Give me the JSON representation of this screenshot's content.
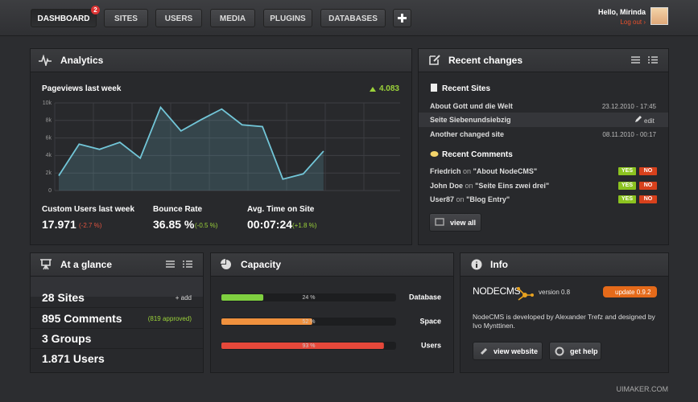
{
  "nav": {
    "items": [
      "DASHBOARD",
      "SITES",
      "USERS",
      "MEDIA",
      "PLUGINS",
      "DATABASES"
    ],
    "badge": "2"
  },
  "user": {
    "greeting": "Hello, Mirinda",
    "logout": "Log out ›"
  },
  "analytics": {
    "title": "Analytics",
    "chart": {
      "type": "line",
      "title": "Pageviews last week",
      "total": "4.083",
      "values": [
        1700,
        5300,
        4700,
        5500,
        3700,
        9500,
        6800,
        8100,
        9300,
        7500,
        7300,
        1300,
        1900,
        4500
      ],
      "ylim": [
        0,
        10000
      ],
      "yticks": [
        0,
        {
          "value": 2000,
          "label": "2k"
        },
        {
          "value": 4000,
          "label": "4k"
        },
        {
          "value": 6000,
          "label": "6k"
        },
        {
          "value": 8000,
          "label": "8k"
        },
        {
          "value": 10000,
          "label": "10k"
        }
      ],
      "grid": true,
      "color": "#72c6d8"
    },
    "stats": [
      {
        "label": "Custom Users last week",
        "value": "17.971",
        "change": "(-2.7 %)"
      },
      {
        "label": "Bounce Rate",
        "value": "36.85 %",
        "change": "(-0.5 %)"
      },
      {
        "label": "Avg. Time on Site",
        "value": "00:07:24",
        "change": "(+1.8 %)"
      }
    ]
  },
  "recent": {
    "title": "Recent changes",
    "sites_title": "Recent Sites",
    "sites": [
      {
        "name": "About Gott und die Welt",
        "info": "23.12.2010 - 17:45"
      },
      {
        "name": "Seite Siebenundsiebzig",
        "info": "edit"
      },
      {
        "name": "Another changed site",
        "info": "08.11.2010 - 00:17"
      }
    ],
    "comments_title": "Recent Comments",
    "comments": [
      {
        "author": "Friedrich",
        "on": "on",
        "entry": "\"About NodeCMS\"",
        "yes": "YES",
        "no": "NO"
      },
      {
        "author": "John Doe",
        "on": "on",
        "entry": "\"Seite Eins zwei drei\"",
        "yes": "YES",
        "no": "NO"
      },
      {
        "author": "User87",
        "on": "on",
        "entry": "\"Blog Entry\"",
        "yes": "YES",
        "no": "NO"
      }
    ],
    "view_all": "view all"
  },
  "glance": {
    "title": "At a glance",
    "items": [
      {
        "text": "28 Sites",
        "extra": "+ add"
      },
      {
        "text": "895 Comments",
        "extra": "(819 approved)"
      },
      {
        "text": "3 Groups"
      },
      {
        "text": "1.871 Users"
      }
    ]
  },
  "capacity": {
    "type": "bar",
    "title": "Capacity",
    "categories": [
      "Database",
      "Space",
      "Users"
    ],
    "values": [
      24,
      52,
      93
    ],
    "value_labels": [
      "24 %",
      "52 %",
      "93 %"
    ],
    "xlim": [
      0,
      100
    ],
    "colors": [
      "#7fd040",
      "#f0913e",
      "#e5483a"
    ]
  },
  "info": {
    "title": "Info",
    "product": "NODECMS",
    "version": "version 0.8",
    "update": "update 0.9.2",
    "description": "NodeCMS is developed by Alexander Trefz and designed by Ivo Mynttinen.",
    "buttons": [
      "view website",
      "get help"
    ]
  },
  "footer": "UIMAKER.COM"
}
